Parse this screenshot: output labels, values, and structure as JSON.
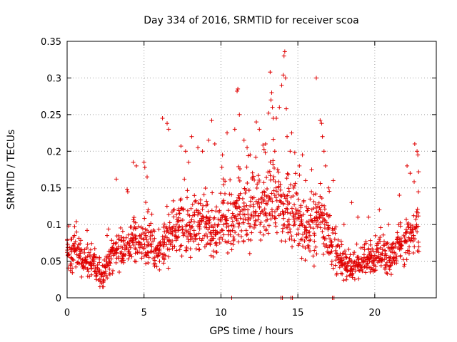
{
  "chart_data": {
    "type": "scatter",
    "title": "Day 334 of 2016, SRMTID for receiver scoa",
    "xlabel": "GPS time / hours",
    "ylabel": "SRMTID / TECUs",
    "xlim": [
      0,
      24
    ],
    "ylim": [
      0,
      0.35
    ],
    "xticks": [
      0,
      5,
      10,
      15,
      20
    ],
    "xtick_labels": [
      "0",
      "5",
      "10",
      "15",
      "20"
    ],
    "yticks": [
      0,
      0.05,
      0.1,
      0.15,
      0.2,
      0.25,
      0.3,
      0.35
    ],
    "ytick_labels": [
      "0",
      "0.05",
      "0.1",
      "0.15",
      "0.2",
      "0.25",
      "0.3",
      "0.35"
    ],
    "grid": true,
    "marker": "+",
    "color": "#e00000",
    "series": [
      {
        "name": "SRMTID",
        "x": [
          0.0,
          0.25,
          0.5,
          0.75,
          1.0,
          1.25,
          1.5,
          1.75,
          2.0,
          2.25,
          2.5,
          2.75,
          3.0,
          3.25,
          3.5,
          3.75,
          4.0,
          4.25,
          4.5,
          4.75,
          5.0,
          5.25,
          5.5,
          5.75,
          6.0,
          6.25,
          6.5,
          6.75,
          7.0,
          7.25,
          7.5,
          7.75,
          8.0,
          8.25,
          8.5,
          8.75,
          9.0,
          9.25,
          9.5,
          9.75,
          10.0,
          10.25,
          10.5,
          10.75,
          11.0,
          11.25,
          11.5,
          11.75,
          12.0,
          12.25,
          12.5,
          12.75,
          13.0,
          13.25,
          13.5,
          13.75,
          14.0,
          14.25,
          14.5,
          14.75,
          15.0,
          15.25,
          15.5,
          15.75,
          16.0,
          16.25,
          16.5,
          16.75,
          17.0,
          17.25,
          17.5,
          17.75,
          18.0,
          18.25,
          18.5,
          18.75,
          19.0,
          19.25,
          19.5,
          19.75,
          20.0,
          20.25,
          20.5,
          20.75,
          21.0,
          21.25,
          21.5,
          21.75,
          22.0,
          22.25,
          22.5,
          22.75
        ],
        "y": [
          0.062,
          0.055,
          0.064,
          0.058,
          0.052,
          0.05,
          0.048,
          0.044,
          0.038,
          0.03,
          0.042,
          0.05,
          0.058,
          0.066,
          0.07,
          0.072,
          0.074,
          0.078,
          0.075,
          0.072,
          0.08,
          0.076,
          0.07,
          0.068,
          0.065,
          0.072,
          0.082,
          0.088,
          0.092,
          0.096,
          0.094,
          0.09,
          0.088,
          0.092,
          0.098,
          0.104,
          0.102,
          0.096,
          0.092,
          0.09,
          0.105,
          0.11,
          0.098,
          0.092,
          0.108,
          0.118,
          0.125,
          0.12,
          0.112,
          0.118,
          0.125,
          0.132,
          0.128,
          0.136,
          0.14,
          0.125,
          0.118,
          0.122,
          0.115,
          0.11,
          0.108,
          0.102,
          0.096,
          0.09,
          0.095,
          0.105,
          0.112,
          0.1,
          0.085,
          0.07,
          0.056,
          0.05,
          0.046,
          0.044,
          0.04,
          0.042,
          0.046,
          0.05,
          0.052,
          0.054,
          0.058,
          0.062,
          0.06,
          0.058,
          0.056,
          0.062,
          0.068,
          0.072,
          0.076,
          0.08,
          0.085,
          0.09
        ]
      }
    ],
    "outliers": {
      "x": [
        0.1,
        0.6,
        1.3,
        1.9,
        2.6,
        3.2,
        3.9,
        4.3,
        4.5,
        5.0,
        5.05,
        5.2,
        6.2,
        6.5,
        6.6,
        7.4,
        7.7,
        7.9,
        8.1,
        8.5,
        8.8,
        9.2,
        9.4,
        9.6,
        10.1,
        10.4,
        10.9,
        11.05,
        11.1,
        11.2,
        11.5,
        11.7,
        11.9,
        12.3,
        12.5,
        12.9,
        13.1,
        13.2,
        13.25,
        13.3,
        13.35,
        13.4,
        13.5,
        13.6,
        13.8,
        13.95,
        14.05,
        14.1,
        14.15,
        14.2,
        14.25,
        14.3,
        14.5,
        14.6,
        14.8,
        15.1,
        15.3,
        15.5,
        15.9,
        16.2,
        16.45,
        16.55,
        16.6,
        16.7,
        16.8,
        17.0,
        17.3,
        18.0,
        18.5,
        18.9,
        19.6,
        20.3,
        20.9,
        21.6,
        22.1,
        22.3,
        22.6,
        22.75,
        22.8,
        22.85,
        10.7,
        13.9,
        14.0,
        14.55,
        14.65,
        17.25,
        17.35
      ],
      "y": [
        0.098,
        0.104,
        0.092,
        0.025,
        0.085,
        0.162,
        0.148,
        0.185,
        0.18,
        0.185,
        0.178,
        0.165,
        0.245,
        0.238,
        0.23,
        0.207,
        0.2,
        0.185,
        0.22,
        0.205,
        0.2,
        0.215,
        0.242,
        0.21,
        0.195,
        0.225,
        0.23,
        0.282,
        0.285,
        0.25,
        0.215,
        0.205,
        0.195,
        0.24,
        0.23,
        0.21,
        0.252,
        0.308,
        0.27,
        0.28,
        0.26,
        0.245,
        0.2,
        0.245,
        0.26,
        0.29,
        0.304,
        0.33,
        0.336,
        0.3,
        0.258,
        0.22,
        0.2,
        0.225,
        0.198,
        0.18,
        0.195,
        0.16,
        0.175,
        0.3,
        0.242,
        0.238,
        0.22,
        0.2,
        0.18,
        0.15,
        0.16,
        0.1,
        0.13,
        0.11,
        0.11,
        0.12,
        0.1,
        0.14,
        0.18,
        0.17,
        0.21,
        0.2,
        0.195,
        0.172,
        0.0,
        0.0,
        0.0,
        0.0,
        0.0,
        0.0,
        0.0
      ]
    }
  }
}
